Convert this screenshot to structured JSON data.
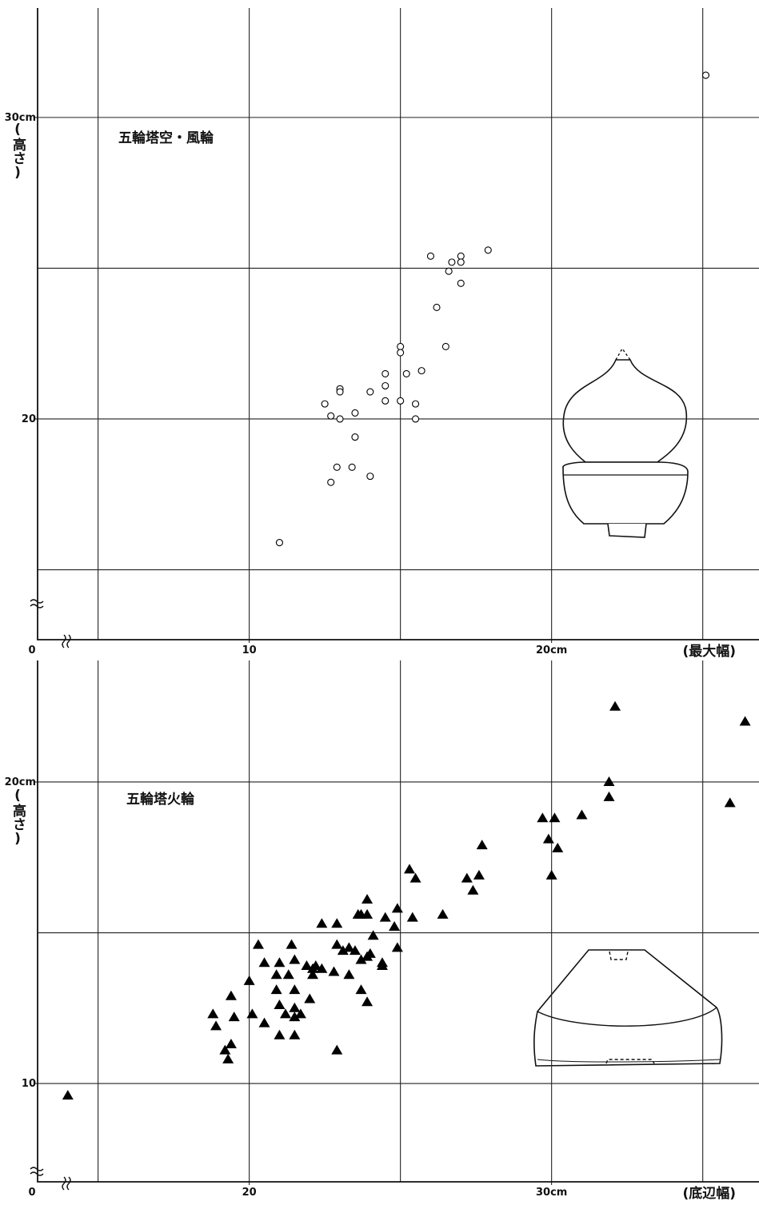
{
  "chart_data": [
    {
      "type": "scatter",
      "title": "五輪塔空・風輪",
      "x_label": "(最大幅)",
      "y_label": "(高さ)",
      "origin_label": "0",
      "xlim": [
        3,
        26.86
      ],
      "ylim": [
        12.68,
        33.63
      ],
      "xticks": [
        10,
        {
          "value": 20,
          "label": "20cm"
        }
      ],
      "yticks": [
        20,
        {
          "value": 30,
          "label": "30cm"
        }
      ],
      "xgrid": [
        5,
        10,
        15,
        20,
        25
      ],
      "ygrid": [
        15,
        20,
        25,
        30
      ],
      "series": [
        {
          "marker": "circle",
          "color": "#000000",
          "x": [
            25.1,
            17.9,
            17.0,
            16.0,
            16.7,
            17.0,
            16.6,
            17.0,
            16.2,
            16.5,
            15.0,
            15.0,
            15.7,
            14.5,
            15.2,
            14.5,
            14.0,
            13.0,
            13.0,
            14.5,
            15.0,
            15.5,
            12.5,
            13.5,
            12.7,
            13.0,
            15.5,
            13.5,
            12.9,
            13.4,
            14.0,
            12.7,
            11.0
          ],
          "values": [
            31.4,
            25.6,
            25.4,
            25.4,
            25.2,
            25.2,
            24.9,
            24.5,
            23.7,
            22.4,
            22.4,
            22.2,
            21.6,
            21.5,
            21.5,
            21.1,
            20.9,
            21.0,
            20.9,
            20.6,
            20.6,
            20.5,
            20.5,
            20.2,
            20.1,
            20.0,
            20.0,
            19.4,
            18.4,
            18.4,
            18.1,
            17.9,
            15.9
          ]
        }
      ]
    },
    {
      "type": "scatter",
      "title": "五輪塔火輪",
      "x_label": "(底辺幅)",
      "y_label": "(高さ)",
      "origin_label": "0",
      "xlim": [
        13,
        36.86
      ],
      "ylim": [
        6.74,
        24.03
      ],
      "xticks": [
        20,
        {
          "value": 30,
          "label": "30cm"
        }
      ],
      "yticks": [
        10,
        {
          "value": 20,
          "label": "20cm"
        }
      ],
      "xgrid": [
        15,
        20,
        25,
        30,
        35
      ],
      "ygrid": [
        10,
        15,
        20
      ],
      "series": [
        {
          "marker": "triangle",
          "color": "#000000",
          "x": [
            14.0,
            32.1,
            36.4,
            31.9,
            31.9,
            35.9,
            29.7,
            30.1,
            31.0,
            29.9,
            30.2,
            27.7,
            30.0,
            25.3,
            25.5,
            27.2,
            27.6,
            27.4,
            23.9,
            23.6,
            23.7,
            23.9,
            24.5,
            24.9,
            25.4,
            26.4,
            22.4,
            22.9,
            24.8,
            24.1,
            20.3,
            21.4,
            22.9,
            23.3,
            23.5,
            24.0,
            24.9,
            23.1,
            23.7,
            23.9,
            24.4,
            24.4,
            20.5,
            21.0,
            21.5,
            21.9,
            22.2,
            22.1,
            22.4,
            22.8,
            20.9,
            21.3,
            20.0,
            23.3,
            22.1,
            23.7,
            19.4,
            20.9,
            21.5,
            22.0,
            23.9,
            21.0,
            21.5,
            21.7,
            21.2,
            21.5,
            18.8,
            19.5,
            20.1,
            20.5,
            18.9,
            19.4,
            19.2,
            19.3,
            21.0,
            21.5,
            22.9
          ],
          "values": [
            9.6,
            22.5,
            22.0,
            20.0,
            19.5,
            19.3,
            18.8,
            18.8,
            18.9,
            18.1,
            17.8,
            17.9,
            16.9,
            17.1,
            16.8,
            16.8,
            16.9,
            16.4,
            16.1,
            15.6,
            15.6,
            15.6,
            15.5,
            15.8,
            15.5,
            15.6,
            15.3,
            15.3,
            15.2,
            14.9,
            14.6,
            14.6,
            14.6,
            14.5,
            14.4,
            14.3,
            14.5,
            14.4,
            14.1,
            14.2,
            14.0,
            13.9,
            14.0,
            14.0,
            14.1,
            13.9,
            13.9,
            13.8,
            13.8,
            13.7,
            13.6,
            13.6,
            13.4,
            13.6,
            13.6,
            13.1,
            12.9,
            13.1,
            13.1,
            12.8,
            12.7,
            12.6,
            12.5,
            12.3,
            12.3,
            12.2,
            12.3,
            12.2,
            12.3,
            12.0,
            11.9,
            11.3,
            11.1,
            10.8,
            11.6,
            11.6,
            11.1
          ]
        }
      ]
    }
  ]
}
